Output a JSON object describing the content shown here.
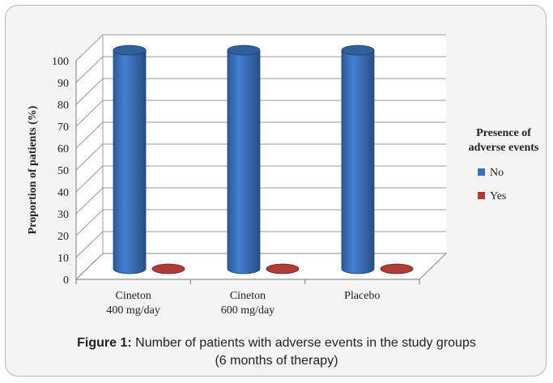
{
  "chart_data": {
    "type": "bar",
    "categories": [
      [
        "Cineton",
        "400 mg/day"
      ],
      [
        "Cineton",
        "600 mg/day"
      ],
      [
        "Placebo"
      ]
    ],
    "series": [
      {
        "name": "No",
        "values": [
          100,
          100,
          100
        ],
        "color": "#3a6fb8"
      },
      {
        "name": "Yes",
        "values": [
          0,
          0,
          0
        ],
        "color": "#b03a36"
      }
    ],
    "ylabel": "Proportion of patients (%)",
    "ylim": [
      0,
      100
    ],
    "yticks": [
      0,
      10,
      20,
      30,
      40,
      50,
      60,
      70,
      80,
      90,
      100
    ],
    "grid": true,
    "legend": {
      "title_lines": [
        "Presence of",
        "adverse events"
      ],
      "placement": "right"
    }
  },
  "caption": {
    "label": "Figure 1:",
    "text": " Number of patients with adverse events in the study groups",
    "line2": "(6 months of therapy)"
  }
}
